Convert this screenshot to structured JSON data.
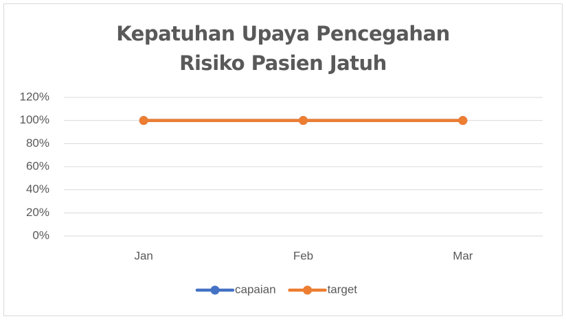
{
  "chart_data": {
    "type": "line",
    "title": "Kepatuhan Upaya Pencegahan Risiko Pasien Jatuh",
    "categories": [
      "Jan",
      "Feb",
      "Mar"
    ],
    "series": [
      {
        "name": "capaian",
        "color": "#4472c4",
        "values": [
          100,
          100,
          100
        ]
      },
      {
        "name": "target",
        "color": "#ed7d31",
        "values": [
          100,
          100,
          100
        ]
      }
    ],
    "ylim": [
      0,
      120
    ],
    "yticks": [
      {
        "value": 0,
        "label": "0%"
      },
      {
        "value": 20,
        "label": "20%"
      },
      {
        "value": 40,
        "label": "40%"
      },
      {
        "value": 60,
        "label": "60%"
      },
      {
        "value": 80,
        "label": "80%"
      },
      {
        "value": 100,
        "label": "100%"
      },
      {
        "value": 120,
        "label": "120%"
      }
    ],
    "grid": true,
    "legend": "bottom"
  }
}
